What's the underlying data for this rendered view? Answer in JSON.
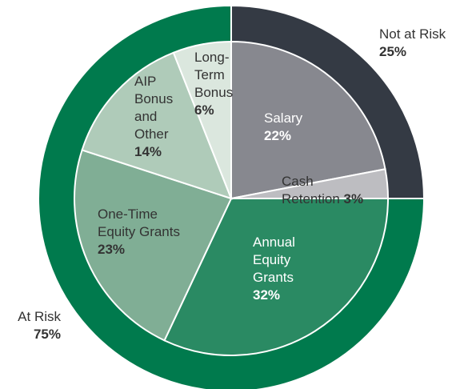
{
  "chart_data": [
    {
      "type": "pie",
      "categories": [
        "Not at Risk",
        "At Risk"
      ],
      "values": [
        25,
        75
      ],
      "value_labels": [
        "25%",
        "75%"
      ],
      "colors": [
        "#343a44",
        "#007a4d"
      ]
    },
    {
      "type": "pie",
      "categories": [
        "Salary",
        "Cash\nRetention",
        "Annual\nEquity\nGrants",
        "One-Time\nEquity Grants",
        "AIP\nBonus\nand\nOther",
        "Long-\nTerm\nBonus"
      ],
      "values": [
        22,
        3,
        32,
        23,
        14,
        6
      ],
      "value_labels": [
        "22%",
        "3%",
        "32%",
        "23%",
        "14%",
        "6%"
      ],
      "colors": [
        "#87888f",
        "#bdbdc1",
        "#2a8a63",
        "#80ae95",
        "#afcbb9",
        "#dbe7de"
      ]
    }
  ]
}
